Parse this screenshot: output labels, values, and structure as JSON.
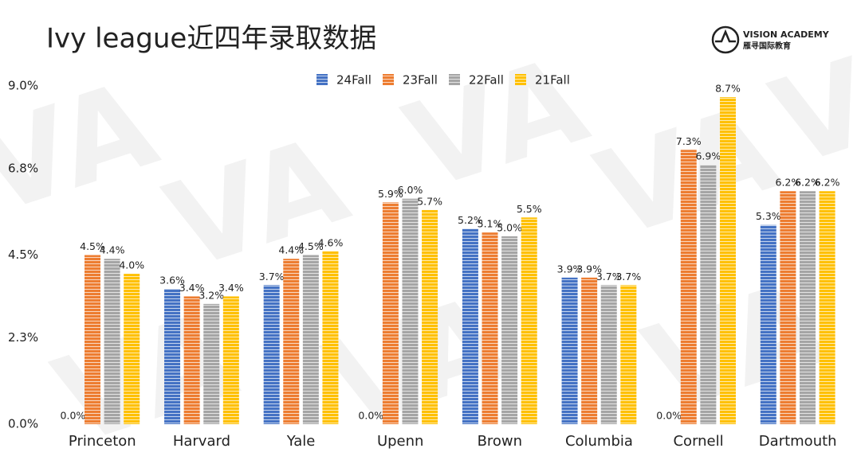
{
  "watermark": "VA",
  "brand": {
    "name": "VISION ACADEMY",
    "sub": "雁寻国际教育"
  },
  "chart_data": {
    "type": "bar",
    "title": "Ivy league近四年录取数据",
    "categories": [
      "Princeton",
      "Harvard",
      "Yale",
      "Upenn",
      "Brown",
      "Columbia",
      "Cornell",
      "Dartmouth"
    ],
    "series": [
      {
        "name": "24Fall",
        "color": "#4472c4",
        "values": [
          0.0,
          3.6,
          3.7,
          0.0,
          5.2,
          3.9,
          0.0,
          5.3
        ],
        "value_labels": [
          "0.0%",
          "3.6%",
          "3.7%",
          "0.0%",
          "5.2%",
          "3.9%",
          "0.0%",
          "5.3%"
        ]
      },
      {
        "name": "23Fall",
        "color": "#ed7d31",
        "values": [
          4.5,
          3.4,
          4.4,
          5.9,
          5.1,
          3.9,
          7.3,
          6.2
        ],
        "value_labels": [
          "4.5%",
          "3.4%",
          "4.4%",
          "5.9%",
          "5.1%",
          "3.9%",
          "7.3%",
          "6.2%"
        ]
      },
      {
        "name": "22Fall",
        "color": "#a5a5a5",
        "values": [
          4.4,
          3.2,
          4.5,
          6.0,
          5.0,
          3.7,
          6.9,
          6.2
        ],
        "value_labels": [
          "4.4%",
          "3.2%",
          "4.5%",
          "6.0%",
          "5.0%",
          "3.7%",
          "6.9%",
          "6.2%"
        ]
      },
      {
        "name": "21Fall",
        "color": "#ffc000",
        "values": [
          4.0,
          3.4,
          4.6,
          5.7,
          5.5,
          3.7,
          8.7,
          6.2
        ],
        "value_labels": [
          "4.0%",
          "3.4%",
          "4.6%",
          "5.7%",
          "5.5%",
          "3.7%",
          "8.7%",
          "6.2%"
        ]
      }
    ],
    "ylim": [
      0,
      9
    ],
    "yticks": [
      {
        "value": 0,
        "label": "0.0%"
      },
      {
        "value": 2.3,
        "label": "2.3%"
      },
      {
        "value": 4.5,
        "label": "4.5%"
      },
      {
        "value": 6.8,
        "label": "6.8%"
      },
      {
        "value": 9,
        "label": "9.0%"
      }
    ],
    "grid": false
  }
}
